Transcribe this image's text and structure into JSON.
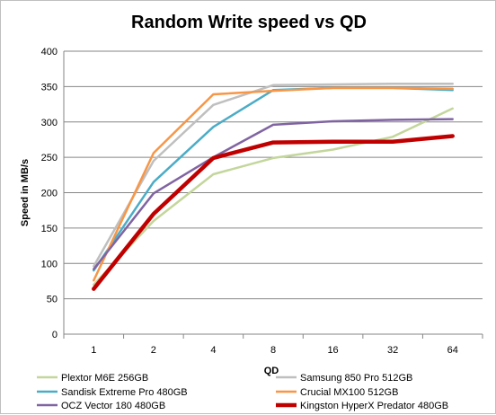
{
  "chart_data": {
    "type": "line",
    "title": "Random Write speed vs QD",
    "xlabel": "QD",
    "ylabel": "Speed in MB/s",
    "categories": [
      "1",
      "2",
      "4",
      "8",
      "16",
      "32",
      "64"
    ],
    "ylim": [
      0,
      400
    ],
    "yticks": [
      0,
      50,
      100,
      150,
      200,
      250,
      300,
      350,
      400
    ],
    "grid": "horizontal",
    "legend_position": "bottom",
    "series": [
      {
        "name": "Plextor M6E 256GB",
        "color": "#c3d69b",
        "width": 2.5,
        "values": [
          70,
          160,
          226,
          249,
          261,
          279,
          319
        ]
      },
      {
        "name": "Samsung 850 Pro 512GB",
        "color": "#bfbfbf",
        "width": 2.5,
        "values": [
          96,
          245,
          324,
          352,
          353,
          354,
          354
        ]
      },
      {
        "name": "Sandisk Extreme Pro 480GB",
        "color": "#4bacc6",
        "width": 2.5,
        "values": [
          90,
          215,
          293,
          345,
          348,
          348,
          345
        ]
      },
      {
        "name": "Crucial MX100 512GB",
        "color": "#f79646",
        "width": 2.5,
        "values": [
          76,
          256,
          339,
          344,
          348,
          348,
          347
        ]
      },
      {
        "name": "OCZ Vector 180 480GB",
        "color": "#8064a2",
        "width": 2.5,
        "values": [
          92,
          199,
          250,
          296,
          301,
          303,
          304
        ]
      },
      {
        "name": "Kingston HyperX Predator 480GB",
        "color": "#c00000",
        "width": 4.5,
        "values": [
          64,
          170,
          249,
          271,
          272,
          272,
          280
        ]
      }
    ]
  }
}
